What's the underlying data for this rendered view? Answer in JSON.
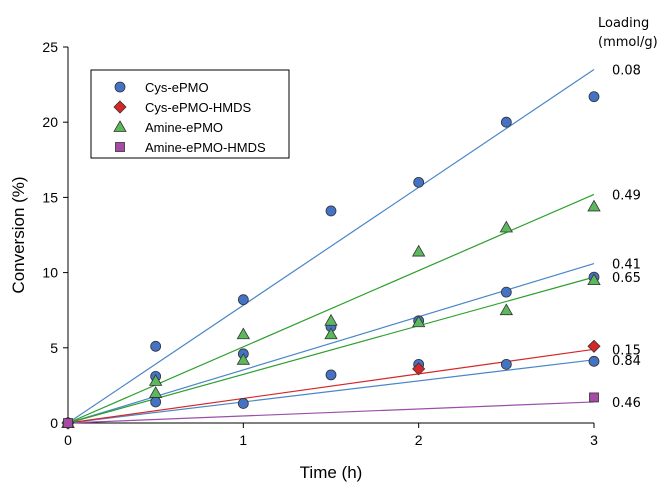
{
  "chart_data": {
    "type": "scatter",
    "title": "",
    "xlabel": "Time (h)",
    "ylabel": "Conversion (%)",
    "xlim": [
      0,
      3
    ],
    "ylim": [
      0,
      25
    ],
    "xticks": [
      "0",
      "1",
      "2",
      "3"
    ],
    "yticks": [
      "0",
      "5",
      "10",
      "15",
      "20",
      "25"
    ],
    "grid": false,
    "legend_position": "top-left",
    "side_title": [
      "Loading",
      "(mmol/g)"
    ],
    "series": [
      {
        "name": "Cys-ePMO",
        "marker": "circle",
        "color": "#4472C4",
        "line_color": "#4A86C8",
        "groups": [
          {
            "loading": "0.08",
            "points": [
              [
                0,
                0
              ],
              [
                0.5,
                5.1
              ],
              [
                1,
                8.2
              ],
              [
                1.5,
                14.1
              ],
              [
                2,
                16.0
              ],
              [
                2.5,
                20.0
              ],
              [
                3,
                21.7
              ]
            ],
            "fit": [
              [
                0,
                0
              ],
              [
                3,
                23.5
              ]
            ]
          },
          {
            "loading": "0.41",
            "points": [
              [
                0,
                0
              ],
              [
                0.5,
                3.1
              ],
              [
                1,
                4.6
              ],
              [
                1.5,
                6.4
              ],
              [
                2,
                6.8
              ],
              [
                2.5,
                8.7
              ],
              [
                3,
                9.7
              ]
            ],
            "fit": [
              [
                0,
                0
              ],
              [
                3,
                10.6
              ]
            ]
          },
          {
            "loading": "0.84",
            "points": [
              [
                0,
                0
              ],
              [
                0.5,
                1.4
              ],
              [
                1,
                1.3
              ],
              [
                1.5,
                3.2
              ],
              [
                2,
                3.9
              ],
              [
                2.5,
                3.9
              ],
              [
                3,
                4.1
              ]
            ],
            "fit": [
              [
                0,
                0
              ],
              [
                3,
                4.2
              ]
            ]
          }
        ]
      },
      {
        "name": "Cys-ePMO-HMDS",
        "marker": "diamond",
        "color": "#D62728",
        "line_color": "#D62728",
        "groups": [
          {
            "loading": "0.15",
            "points": [
              [
                0,
                0
              ],
              [
                2,
                3.6
              ],
              [
                3,
                5.1
              ]
            ],
            "fit": [
              [
                0,
                0
              ],
              [
                3,
                4.9
              ]
            ]
          }
        ]
      },
      {
        "name": "Amine-ePMO",
        "marker": "triangle",
        "color": "#5CB85C",
        "line_color": "#2CA02C",
        "groups": [
          {
            "loading": "0.49",
            "points": [
              [
                0,
                0
              ],
              [
                0.5,
                2.8
              ],
              [
                1,
                5.9
              ],
              [
                1.5,
                6.8
              ],
              [
                2,
                11.4
              ],
              [
                2.5,
                13.0
              ],
              [
                3,
                14.4
              ]
            ],
            "fit": [
              [
                0,
                0
              ],
              [
                3,
                15.2
              ]
            ]
          },
          {
            "loading": "0.65",
            "points": [
              [
                0,
                0
              ],
              [
                0.5,
                2.0
              ],
              [
                1,
                4.2
              ],
              [
                1.5,
                5.9
              ],
              [
                2,
                6.7
              ],
              [
                2.5,
                7.5
              ],
              [
                3,
                9.5
              ]
            ],
            "fit": [
              [
                0,
                0
              ],
              [
                3,
                9.7
              ]
            ]
          }
        ]
      },
      {
        "name": "Amine-ePMO-HMDS",
        "marker": "square",
        "color": "#A64CA6",
        "line_color": "#9B4FA8",
        "groups": [
          {
            "loading": "0.46",
            "points": [
              [
                0,
                0
              ],
              [
                3,
                1.7
              ]
            ],
            "fit": [
              [
                0,
                0
              ],
              [
                3,
                1.4
              ]
            ]
          }
        ]
      }
    ]
  }
}
